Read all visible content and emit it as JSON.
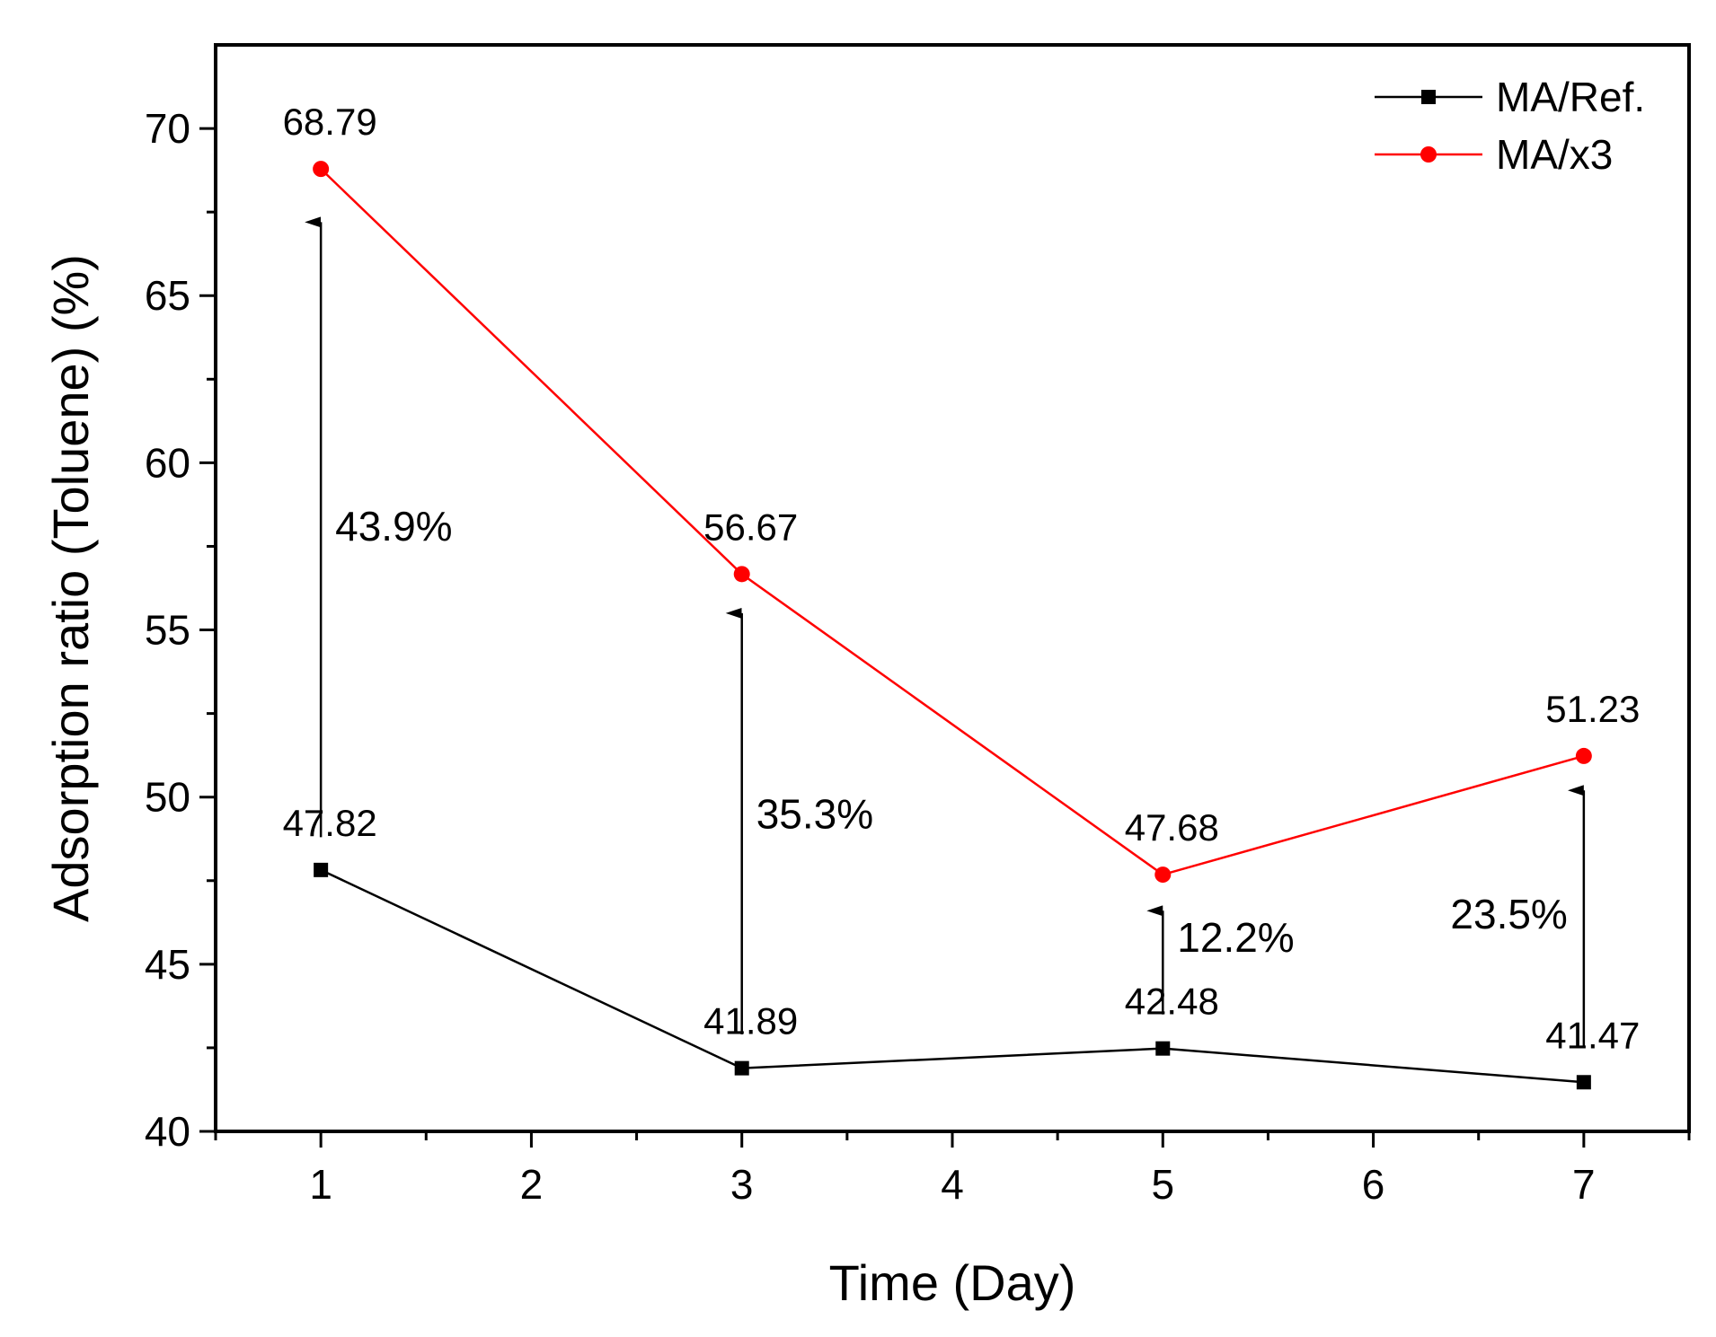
{
  "chart_data": {
    "type": "line",
    "title": "",
    "xlabel": "Time (Day)",
    "ylabel": "Adsorption ratio (Toluene) (%)",
    "xlim": [
      0.5,
      7.5
    ],
    "ylim": [
      40,
      72.5
    ],
    "x_ticks": [
      1,
      2,
      3,
      4,
      5,
      6,
      7
    ],
    "y_ticks": [
      40,
      45,
      50,
      55,
      60,
      65,
      70
    ],
    "grid": false,
    "legend_position": "top-right",
    "series": [
      {
        "name": "MA/Ref.",
        "color": "#000000",
        "marker": "square",
        "x": [
          1,
          3,
          5,
          7
        ],
        "values": [
          47.82,
          41.89,
          42.48,
          41.47
        ],
        "labels": [
          "47.82",
          "41.89",
          "42.48",
          "41.47"
        ]
      },
      {
        "name": "MA/x3",
        "color": "#ff0000",
        "marker": "circle",
        "x": [
          1,
          3,
          5,
          7
        ],
        "values": [
          68.79,
          56.67,
          47.68,
          51.23
        ],
        "labels": [
          "68.79",
          "56.67",
          "47.68",
          "51.23"
        ]
      }
    ],
    "annotations": [
      {
        "x": 1,
        "from": 48.8,
        "to": 67.2,
        "label": "43.9%",
        "label_y": 58.1,
        "side": "right"
      },
      {
        "x": 3,
        "from": 42.9,
        "to": 55.5,
        "label": "35.3%",
        "label_y": 49.5,
        "side": "right"
      },
      {
        "x": 5,
        "from": 43.5,
        "to": 46.6,
        "label": "12.2%",
        "label_y": 45.8,
        "side": "right"
      },
      {
        "x": 7,
        "from": 42.5,
        "to": 50.2,
        "label": "23.5%",
        "label_y": 46.5,
        "side": "left"
      }
    ]
  }
}
